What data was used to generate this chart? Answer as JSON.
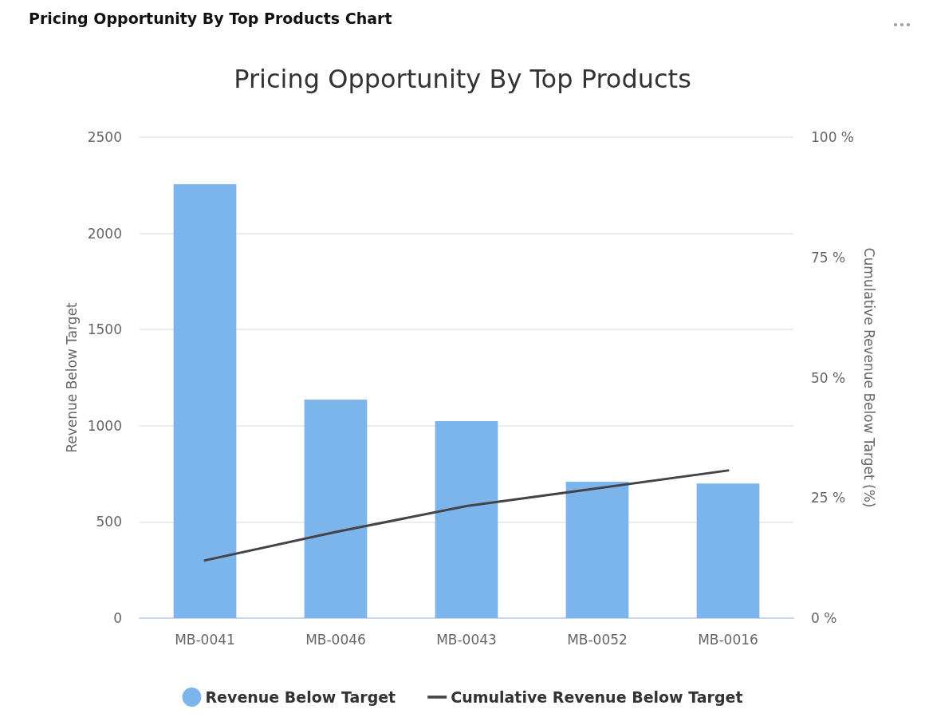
{
  "chart_data": {
    "type": "bar",
    "title": "Pricing Opportunity By Top Products",
    "annotations": [
      "Pricing Opportunity By Top Products Chart"
    ],
    "categories": [
      "MB-0041",
      "MB-0046",
      "MB-0043",
      "MB-0052",
      "MB-0016"
    ],
    "series": [
      {
        "name": "Revenue Below Target",
        "color": "#7cb5ec",
        "values": [
          2255,
          1136,
          1024,
          709,
          700
        ]
      },
      {
        "name": "Cumulative Revenue Below Target",
        "type": "line",
        "axis": "y2",
        "color": "#434348",
        "values": [
          12,
          17.9,
          23.3,
          27,
          30.7
        ]
      }
    ],
    "ylabel": "Revenue Below Target",
    "y2label": "Cumulative Revenue Below Target (%)",
    "ylim": [
      0,
      2500
    ],
    "yticks": [
      0,
      500,
      1000,
      1500,
      2000,
      2500
    ],
    "y2lim": [
      0,
      100
    ],
    "y2ticks": [
      {
        "value": 0,
        "label": "0 %"
      },
      {
        "value": 25,
        "label": "25 %"
      },
      {
        "value": 50,
        "label": "50 %"
      },
      {
        "value": 75,
        "label": "75 %"
      },
      {
        "value": 100,
        "label": "100 %"
      }
    ],
    "grid": "y",
    "legend": "bottom",
    "marker": "none"
  }
}
